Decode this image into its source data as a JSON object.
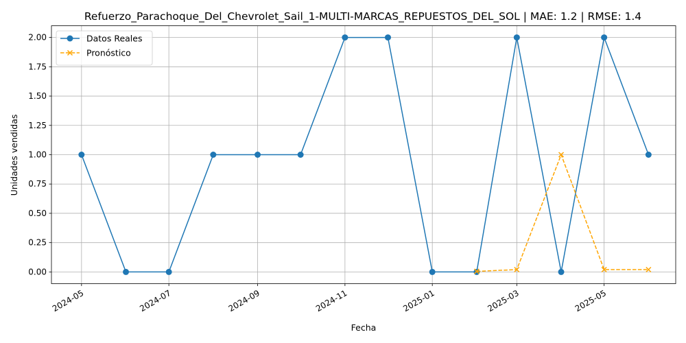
{
  "chart_data": {
    "type": "line",
    "title": "Refuerzo_Parachoque_Del_Chevrolet_Sail_1-MULTI-MARCAS_REPUESTOS_DEL_SOL | MAE: 1.2 | RMSE: 1.4",
    "xlabel": "Fecha",
    "ylabel": "Unidades vendidas",
    "grid": true,
    "legend_position": "top-left",
    "xlim": [
      "2024-04-10",
      "2025-06-20"
    ],
    "ylim": [
      -0.1,
      2.1
    ],
    "x_ticks": [
      "2024-05-01",
      "2024-07-01",
      "2024-09-01",
      "2024-11-01",
      "2025-01-01",
      "2025-03-01",
      "2025-05-01"
    ],
    "x_tick_labels": [
      "2024-05",
      "2024-07",
      "2024-09",
      "2024-11",
      "2025-01",
      "2025-03",
      "2025-05"
    ],
    "y_ticks": [
      0.0,
      0.25,
      0.5,
      0.75,
      1.0,
      1.25,
      1.5,
      1.75,
      2.0
    ],
    "y_tick_labels": [
      "0.00",
      "0.25",
      "0.50",
      "0.75",
      "1.00",
      "1.25",
      "1.50",
      "1.75",
      "2.00"
    ],
    "series": [
      {
        "name": "Datos Reales",
        "color": "#1f77b4",
        "marker": "circle",
        "line": "solid",
        "x": [
          "2024-05-01",
          "2024-06-01",
          "2024-07-01",
          "2024-08-01",
          "2024-09-01",
          "2024-10-01",
          "2024-11-01",
          "2024-12-01",
          "2025-01-01",
          "2025-02-01",
          "2025-03-01",
          "2025-04-01",
          "2025-05-01",
          "2025-06-01"
        ],
        "values": [
          1,
          0,
          0,
          1,
          1,
          1,
          2,
          2,
          0,
          0,
          2,
          0,
          2,
          1
        ]
      },
      {
        "name": "Pronóstico",
        "color": "#ffa500",
        "marker": "x",
        "line": "dashed",
        "x": [
          "2025-02-01",
          "2025-03-01",
          "2025-04-01",
          "2025-05-01",
          "2025-06-01"
        ],
        "values": [
          0.005,
          0.02,
          1.0,
          0.02,
          0.02
        ]
      }
    ]
  }
}
